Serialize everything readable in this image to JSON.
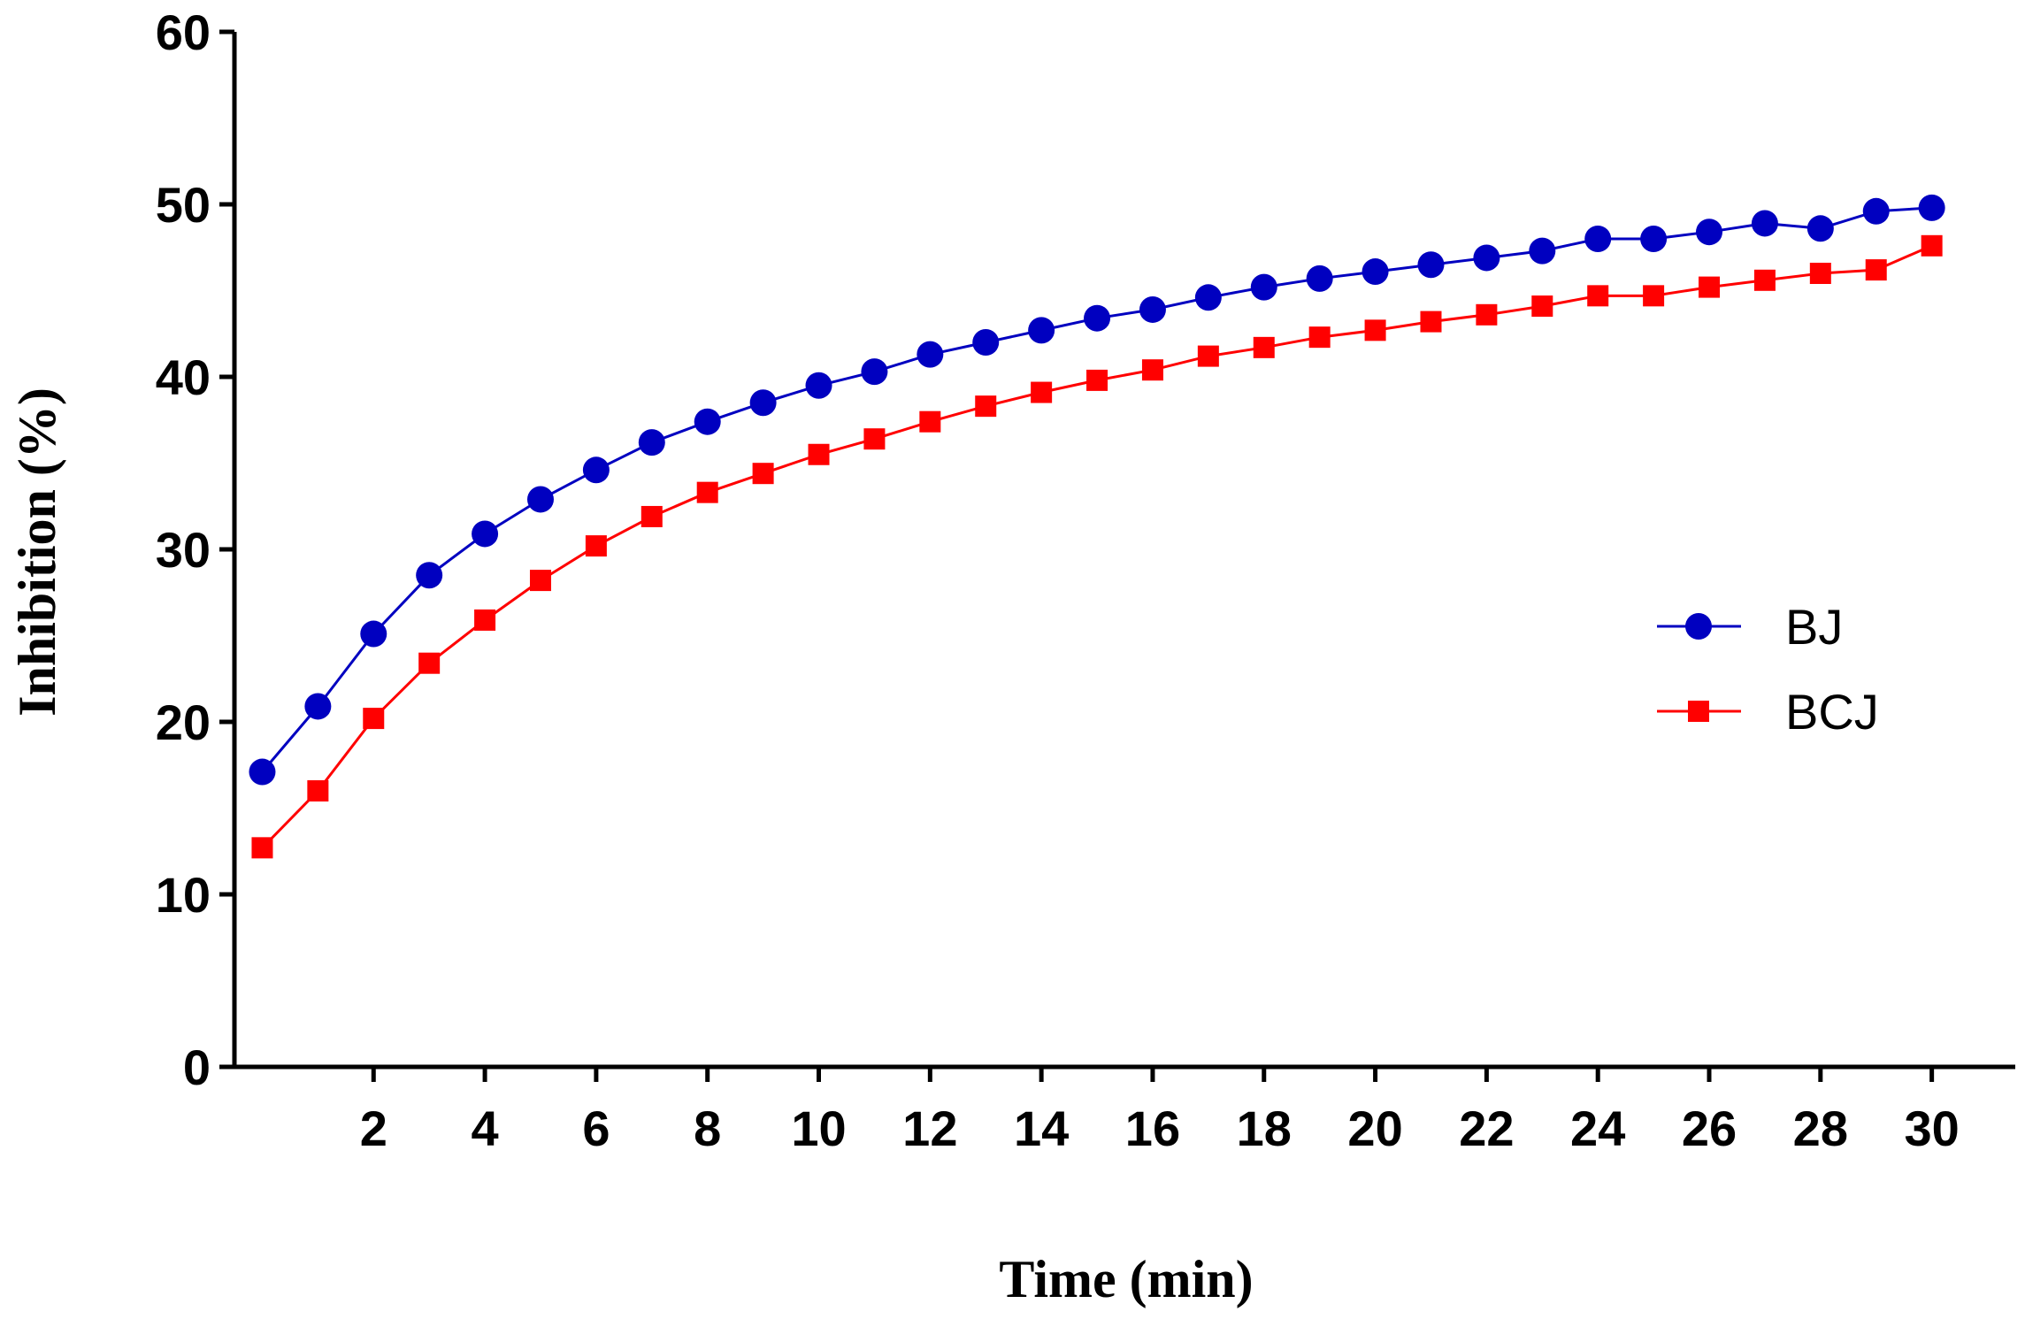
{
  "chart_data": {
    "type": "line",
    "title": "",
    "xlabel": "Time (min)",
    "ylabel": "Inhibition (%)",
    "xlim": [
      -0.5,
      31.5
    ],
    "ylim": [
      0,
      60
    ],
    "xticks": [
      2,
      4,
      6,
      8,
      10,
      12,
      14,
      16,
      18,
      20,
      22,
      24,
      26,
      28,
      30
    ],
    "xtick_labels": [
      "2",
      "4",
      "6",
      "8",
      "10",
      "12",
      "14",
      "16",
      "18",
      "20",
      "22",
      "24",
      "26",
      "28",
      "30"
    ],
    "yticks": [
      0,
      10,
      20,
      30,
      40,
      50,
      60
    ],
    "ytick_labels": [
      "0",
      "10",
      "20",
      "30",
      "40",
      "50",
      "60"
    ],
    "grid": false,
    "legend_position": "right",
    "x": [
      0,
      1,
      2,
      3,
      4,
      5,
      6,
      7,
      8,
      9,
      10,
      11,
      12,
      13,
      14,
      15,
      16,
      17,
      18,
      19,
      20,
      21,
      22,
      23,
      24,
      25,
      26,
      27,
      28,
      29,
      30
    ],
    "series": [
      {
        "name": "BJ",
        "color": "#0000c0",
        "marker": "circle",
        "values": [
          17.1,
          20.9,
          25.1,
          28.5,
          30.9,
          32.9,
          34.6,
          36.2,
          37.4,
          38.5,
          39.5,
          40.3,
          41.3,
          42.0,
          42.7,
          43.4,
          43.9,
          44.6,
          45.2,
          45.7,
          46.1,
          46.5,
          46.9,
          47.3,
          48.0,
          48.0,
          48.4,
          48.9,
          48.6,
          49.6,
          49.8
        ]
      },
      {
        "name": "BCJ",
        "color": "#ff0000",
        "marker": "square",
        "values": [
          12.7,
          16.0,
          20.2,
          23.4,
          25.9,
          28.2,
          30.2,
          31.9,
          33.3,
          34.4,
          35.5,
          36.4,
          37.4,
          38.3,
          39.1,
          39.8,
          40.4,
          41.2,
          41.7,
          42.3,
          42.7,
          43.2,
          43.6,
          44.1,
          44.7,
          44.7,
          45.2,
          45.6,
          46.0,
          46.2,
          47.6
        ]
      }
    ]
  }
}
